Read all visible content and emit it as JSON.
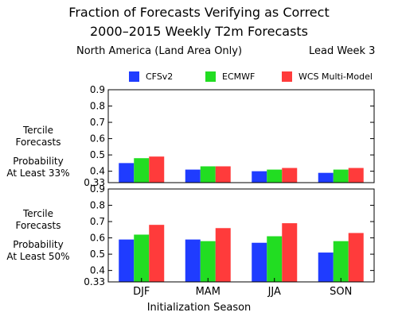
{
  "title_line1": "Fraction of Forecasts Verifying as Correct",
  "title_line2": "2000–2015 Weekly T2m Forecasts",
  "region": "North America (Land Area Only)",
  "lead": "Lead Week 3",
  "xlabel": "Initialization Season",
  "panel_labels": [
    {
      "line1": "Tercile",
      "line2": "Forecasts",
      "line3": "Probability",
      "line4": "At Least 33%"
    },
    {
      "line1": "Tercile",
      "line2": "Forecasts",
      "line3": "Probability",
      "line4": "At Least 50%"
    }
  ],
  "legend": [
    {
      "name": "CFSv2",
      "color": "#1f3cff"
    },
    {
      "name": "ECMWF",
      "color": "#22dd22"
    },
    {
      "name": "WCS Multi-Model",
      "color": "#ff3b3b"
    }
  ],
  "chart_data": [
    {
      "type": "bar",
      "categories": [
        "DJF",
        "MAM",
        "JJA",
        "SON"
      ],
      "ylim": [
        0.33,
        0.9
      ],
      "yticks": [
        0.33,
        0.4,
        0.5,
        0.6,
        0.7,
        0.8,
        0.9
      ],
      "ytick_labels": [
        "0.33",
        "0.4",
        "0.5",
        "0.6",
        "0.7",
        "0.8",
        "0.9"
      ],
      "series": [
        {
          "name": "CFSv2",
          "values": [
            0.45,
            0.41,
            0.4,
            0.39
          ]
        },
        {
          "name": "ECMWF",
          "values": [
            0.48,
            0.43,
            0.41,
            0.41
          ]
        },
        {
          "name": "WCS Multi-Model",
          "values": [
            0.49,
            0.43,
            0.42,
            0.42
          ]
        }
      ]
    },
    {
      "type": "bar",
      "categories": [
        "DJF",
        "MAM",
        "JJA",
        "SON"
      ],
      "ylim": [
        0.33,
        0.9
      ],
      "yticks": [
        0.33,
        0.4,
        0.5,
        0.6,
        0.7,
        0.8,
        0.9
      ],
      "ytick_labels": [
        "0.33",
        "0.4",
        "0.5",
        "0.6",
        "0.7",
        "0.8",
        "0.9"
      ],
      "series": [
        {
          "name": "CFSv2",
          "values": [
            0.59,
            0.59,
            0.57,
            0.51
          ]
        },
        {
          "name": "ECMWF",
          "values": [
            0.62,
            0.58,
            0.61,
            0.58
          ]
        },
        {
          "name": "WCS Multi-Model",
          "values": [
            0.68,
            0.66,
            0.69,
            0.63
          ]
        }
      ]
    }
  ]
}
